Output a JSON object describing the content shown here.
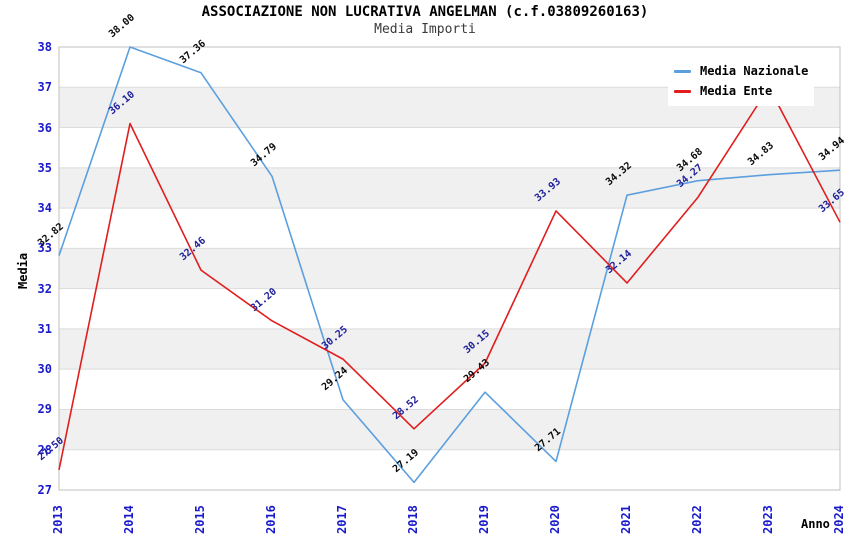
{
  "header": {
    "title": "ASSOCIAZIONE NON LUCRATIVA ANGELMAN (c.f.03809260163)",
    "subtitle": "Media Importi"
  },
  "axes": {
    "y_label": "Media",
    "x_label": "Anno",
    "y_ticks": [
      "38",
      "37",
      "36",
      "35",
      "34",
      "33",
      "32",
      "31",
      "30",
      "29",
      "28",
      "27"
    ],
    "x_ticks": [
      "2013",
      "2014",
      "2015",
      "2016",
      "2017",
      "2018",
      "2019",
      "2020",
      "2021",
      "2022",
      "2023",
      "2024"
    ],
    "tick_color": "#1a1acc"
  },
  "legend": {
    "items": [
      {
        "label": "Media Nazionale"
      },
      {
        "label": "Media Ente"
      }
    ]
  },
  "chart_data": {
    "type": "line",
    "title": "ASSOCIAZIONE NON LUCRATIVA ANGELMAN (c.f.03809260163)",
    "subtitle": "Media Importi",
    "xlabel": "Anno",
    "ylabel": "Media",
    "x": [
      2013,
      2014,
      2015,
      2016,
      2017,
      2018,
      2019,
      2020,
      2021,
      2022,
      2023,
      2024
    ],
    "ylim": [
      27,
      38
    ],
    "grid": "horizontal, alternating gray bands",
    "legend_position": "top-right",
    "series": [
      {
        "name": "Media Nazionale",
        "color": "#5c9fdf",
        "label_color": "#0a0a0a",
        "values": [
          32.82,
          38.0,
          37.36,
          34.79,
          29.24,
          27.19,
          29.43,
          27.71,
          34.32,
          34.68,
          34.83,
          34.94
        ],
        "value_labels": [
          "32.82",
          "38.00",
          "37.36",
          "34.79",
          "29.24",
          "27.19",
          "29.43",
          "27.71",
          "34.32",
          "34.68",
          "34.83",
          "34.94"
        ]
      },
      {
        "name": "Media Ente",
        "color": "#e01e1e",
        "label_color": "#202099",
        "values": [
          27.5,
          36.1,
          32.46,
          31.2,
          30.25,
          28.52,
          30.15,
          33.93,
          32.14,
          34.27,
          37.0,
          33.65
        ],
        "value_labels": [
          "27.50",
          "36.10",
          "32.46",
          "31.20",
          "30.25",
          "28.52",
          "30.15",
          "33.93",
          "32.14",
          "34.27",
          "",
          "33.65"
        ]
      }
    ]
  }
}
